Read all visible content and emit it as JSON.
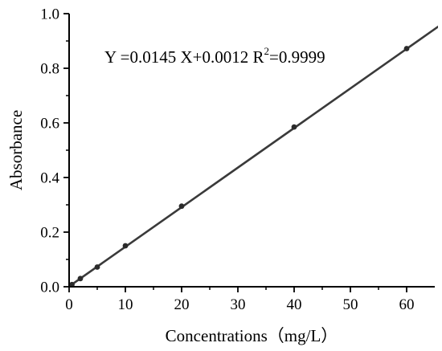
{
  "chart_data": {
    "type": "scatter",
    "xlabel": "Concentrations（mg/L）",
    "ylabel": "Absorbance",
    "xlim": [
      0,
      65
    ],
    "ylim": [
      0,
      1.0
    ],
    "x_ticks": [
      "0",
      "10",
      "20",
      "30",
      "40",
      "50",
      "60"
    ],
    "y_ticks": [
      "0.0",
      "0.2",
      "0.4",
      "0.6",
      "0.8",
      "1.0"
    ],
    "grid": false,
    "points": {
      "x": [
        0.5,
        2,
        5,
        10,
        20,
        40,
        60
      ],
      "y": [
        0.008,
        0.03,
        0.072,
        0.15,
        0.295,
        0.585,
        0.872
      ]
    },
    "fit": {
      "slope": 0.0145,
      "intercept": 0.0012
    },
    "annotation": {
      "prefix": "Y =0.0145 X+0.0012  R",
      "sup": "2",
      "suffix": "=0.9999"
    }
  }
}
